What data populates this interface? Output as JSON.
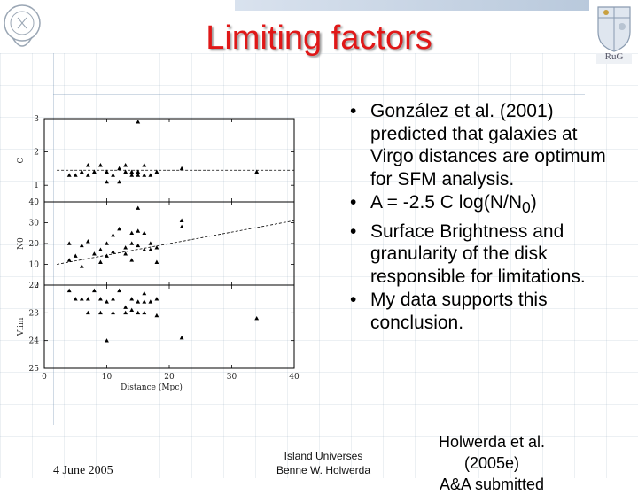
{
  "slide": {
    "title": "Limiting factors",
    "bullets": [
      "González et al. (2001) predicted that galaxies at Virgo distances are optimum for SFM analysis.",
      {
        "pre": "A = -2.5 C log(N/N",
        "sub": "0",
        "post": ")"
      },
      "Surface Brightness and granularity of the disk responsible for limitations.",
      "My data supports this conclusion."
    ],
    "footer": {
      "date": "4 June 2005",
      "event": "Island Universes",
      "author": "Benne W. Holwerda",
      "citation_line1": "Holwerda et al. (2005e)",
      "citation_line2": "A&A submitted"
    },
    "logo_right_label": "RuG",
    "accent_title_color": "#e01818"
  },
  "chart_data": {
    "type": "scatter",
    "xlabel": "Distance (Mpc)",
    "xlim": [
      0,
      40
    ],
    "xticks": [
      0,
      10,
      20,
      30,
      40
    ],
    "panels": [
      {
        "ylabel": "C",
        "ylim": [
          0.5,
          3
        ],
        "yticks": [
          1,
          2,
          3
        ],
        "invert": false,
        "points": [
          [
            15,
            2.9
          ],
          [
            4,
            1.3
          ],
          [
            5,
            1.3
          ],
          [
            6,
            1.4
          ],
          [
            7,
            1.6
          ],
          [
            7,
            1.3
          ],
          [
            8,
            1.4
          ],
          [
            9,
            1.6
          ],
          [
            10,
            1.4
          ],
          [
            10,
            1.1
          ],
          [
            11,
            1.3
          ],
          [
            12,
            1.5
          ],
          [
            12,
            1.1
          ],
          [
            13,
            1.4
          ],
          [
            13,
            1.6
          ],
          [
            14,
            1.3
          ],
          [
            14,
            1.4
          ],
          [
            15,
            1.4
          ],
          [
            15,
            1.3
          ],
          [
            16,
            1.3
          ],
          [
            16,
            1.6
          ],
          [
            17,
            1.3
          ],
          [
            18,
            1.4
          ],
          [
            22,
            1.5
          ],
          [
            34,
            1.4
          ]
        ],
        "trend": [
          [
            2,
            1.45
          ],
          [
            40,
            1.45
          ]
        ]
      },
      {
        "ylabel": "N0",
        "ylim": [
          0,
          40
        ],
        "yticks": [
          0,
          10,
          20,
          30,
          40
        ],
        "invert": false,
        "points": [
          [
            15,
            37
          ],
          [
            4,
            12
          ],
          [
            4,
            20
          ],
          [
            5,
            14
          ],
          [
            6,
            9
          ],
          [
            6,
            19
          ],
          [
            7,
            21
          ],
          [
            8,
            15
          ],
          [
            9,
            17
          ],
          [
            9,
            11
          ],
          [
            10,
            14
          ],
          [
            10,
            20
          ],
          [
            11,
            24
          ],
          [
            11,
            16
          ],
          [
            12,
            27
          ],
          [
            13,
            15
          ],
          [
            13,
            18
          ],
          [
            14,
            20
          ],
          [
            14,
            25
          ],
          [
            14,
            12
          ],
          [
            15,
            26
          ],
          [
            15,
            19
          ],
          [
            16,
            17
          ],
          [
            16,
            25
          ],
          [
            17,
            20
          ],
          [
            17,
            17
          ],
          [
            18,
            18
          ],
          [
            18,
            11
          ],
          [
            22,
            28
          ],
          [
            22,
            31
          ]
        ],
        "trend": [
          [
            2,
            10
          ],
          [
            40,
            31
          ]
        ]
      },
      {
        "ylabel": "Vlim",
        "ylim": [
          22,
          25
        ],
        "yticks": [
          22,
          23,
          24,
          25
        ],
        "invert": true,
        "points": [
          [
            4,
            22.2
          ],
          [
            5,
            22.5
          ],
          [
            6,
            22.5
          ],
          [
            7,
            22.5
          ],
          [
            7,
            23.0
          ],
          [
            8,
            22.2
          ],
          [
            9,
            22.5
          ],
          [
            9,
            23.0
          ],
          [
            10,
            22.6
          ],
          [
            10,
            24.0
          ],
          [
            11,
            22.5
          ],
          [
            11,
            23.0
          ],
          [
            12,
            22.2
          ],
          [
            13,
            22.8
          ],
          [
            13,
            23.0
          ],
          [
            14,
            22.5
          ],
          [
            14,
            22.9
          ],
          [
            15,
            22.6
          ],
          [
            15,
            23.0
          ],
          [
            16,
            22.3
          ],
          [
            16,
            22.6
          ],
          [
            16,
            23.0
          ],
          [
            17,
            22.6
          ],
          [
            18,
            22.5
          ],
          [
            18,
            23.1
          ],
          [
            22,
            23.9
          ],
          [
            34,
            23.2
          ]
        ],
        "trend": []
      }
    ]
  }
}
